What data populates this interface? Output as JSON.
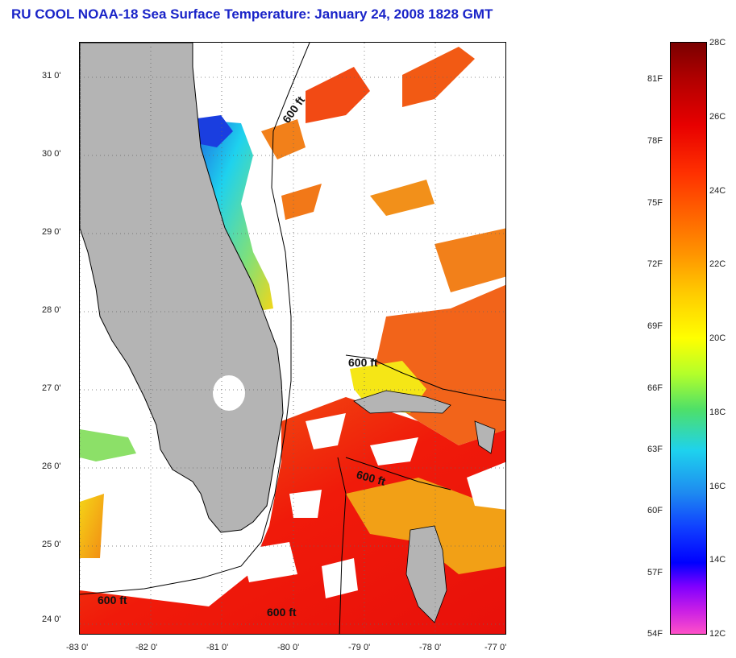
{
  "title": "RU COOL  NOAA-18  Sea Surface Temperature:  January 24, 2008 1828 GMT",
  "map": {
    "lat_labels": [
      "31 0'",
      "30 0'",
      "29 0'",
      "28 0'",
      "27 0'",
      "26 0'",
      "25 0'",
      "24 0'"
    ],
    "lon_labels": [
      "-83 0'",
      "-82 0'",
      "-81 0'",
      "-80 0'",
      "-79 0'",
      "-78 0'",
      "-77 0'"
    ],
    "lon_range": [
      -83,
      -77
    ],
    "lat_range": [
      23.8,
      31.4
    ],
    "grid": "dotted",
    "contour_label": "600 ft",
    "colors": {
      "land": "#b4b4b4",
      "cloud": "#ffffff",
      "warm": "#f01a0a",
      "mid": "#f28a14",
      "cool": "#f5e616",
      "cold": "#1ed2ee"
    }
  },
  "colorbar": {
    "fahrenheit_labels": [
      "81F",
      "78F",
      "75F",
      "72F",
      "69F",
      "66F",
      "63F",
      "60F",
      "57F",
      "54F"
    ],
    "celsius_labels": [
      "28C",
      "26C",
      "24C",
      "22C",
      "20C",
      "18C",
      "16C",
      "14C",
      "12C"
    ],
    "min_c": 12,
    "max_c": 28
  }
}
